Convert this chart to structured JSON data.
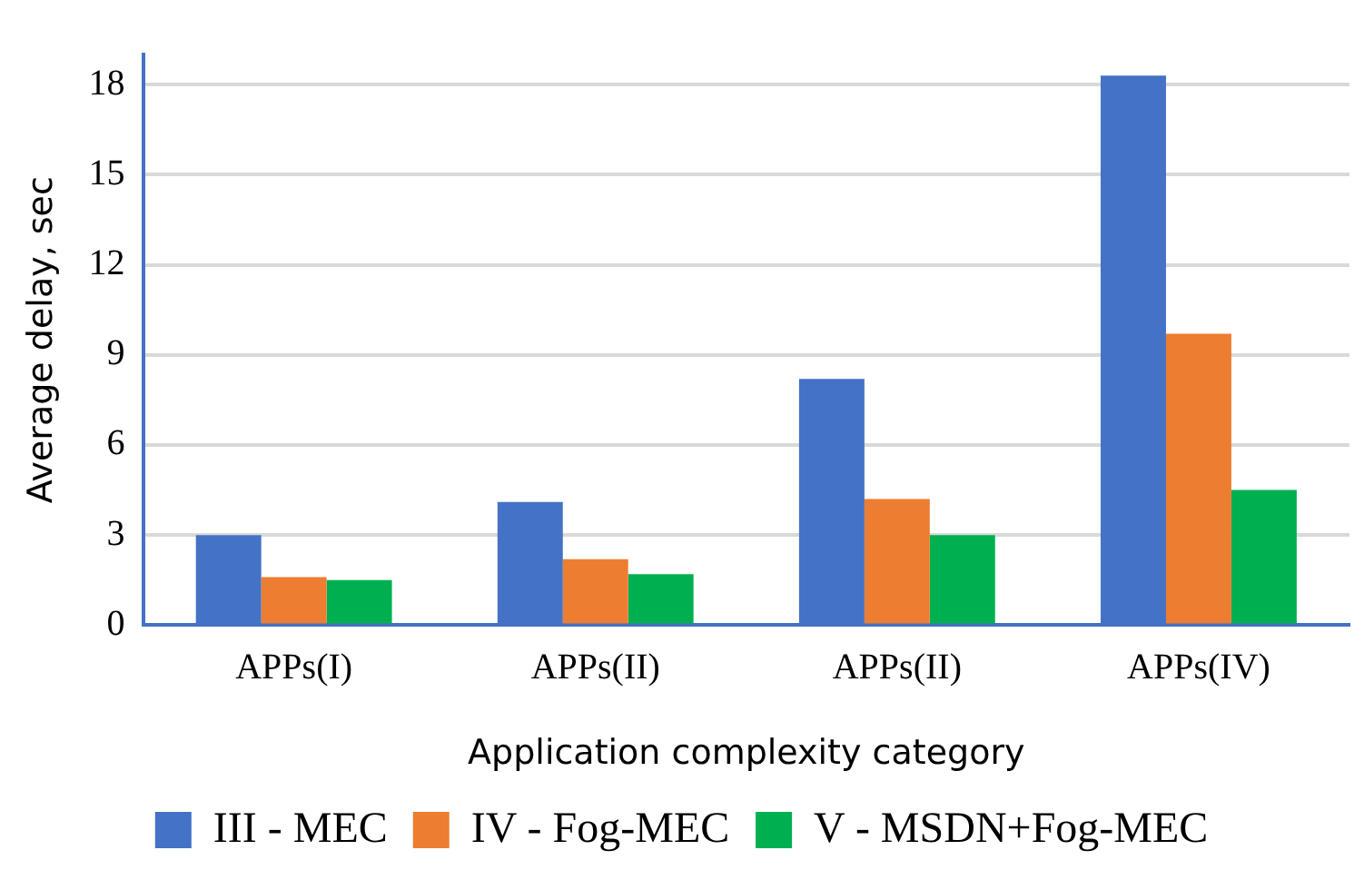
{
  "chart_data": {
    "type": "bar",
    "xlabel": "Application complexity category",
    "ylabel": "Average delay, sec",
    "categories": [
      "APPs(I)",
      "APPs(II)",
      "APPs(II)",
      "APPs(IV)"
    ],
    "series": [
      {
        "name": "III - MEC",
        "color": "#4472c4",
        "values": [
          3.0,
          4.1,
          8.2,
          18.3
        ]
      },
      {
        "name": "IV - Fog-MEC",
        "color": "#ed7d31",
        "values": [
          1.6,
          2.2,
          4.2,
          9.7
        ]
      },
      {
        "name": "V - MSDN+Fog-MEC",
        "color": "#00b050",
        "values": [
          1.5,
          1.7,
          3.0,
          4.5
        ]
      }
    ],
    "ylim": [
      0,
      19
    ],
    "yticks": [
      0,
      3,
      6,
      9,
      12,
      15,
      18
    ],
    "grid": "y",
    "legend": "bottom"
  }
}
